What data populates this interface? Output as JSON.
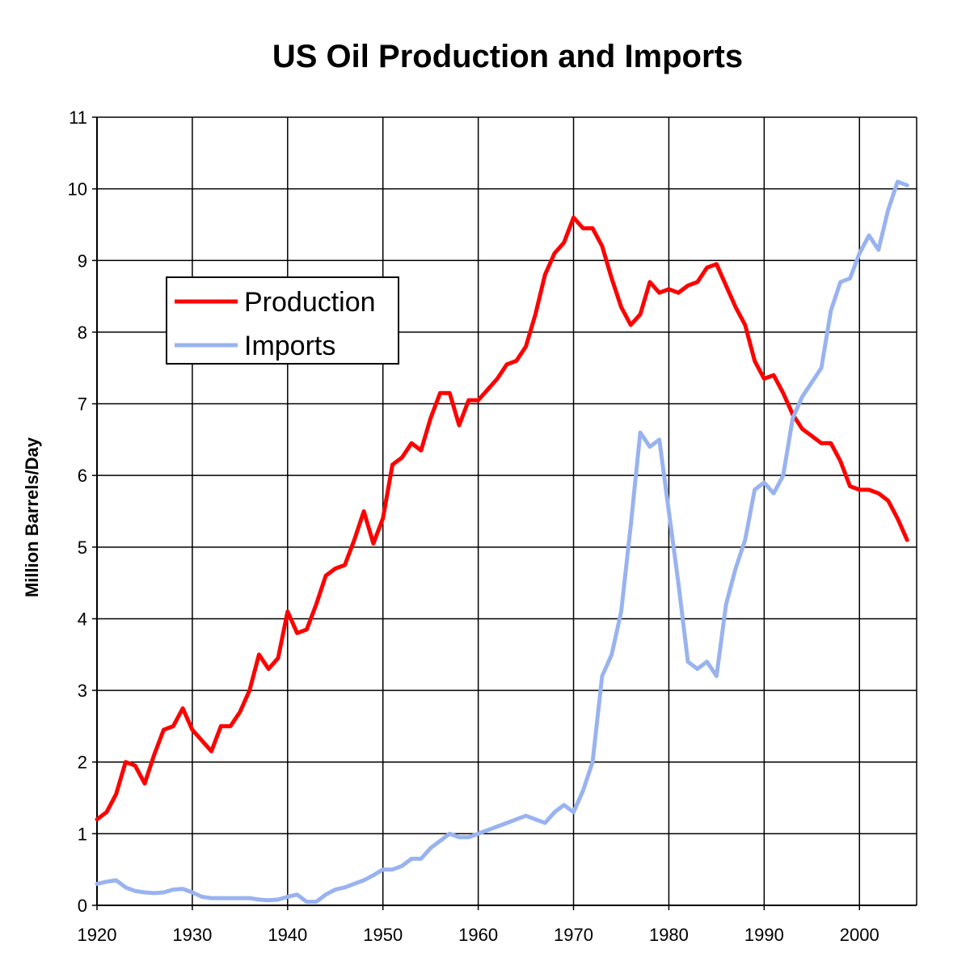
{
  "chart_data": {
    "type": "line",
    "title": "US Oil Production and Imports",
    "xlabel": "",
    "ylabel": "Million Barrels/Day",
    "xlim": [
      1920,
      2006
    ],
    "ylim": [
      0,
      11
    ],
    "x_ticks": [
      "1920",
      "1930",
      "1940",
      "1950",
      "1960",
      "1970",
      "1980",
      "1990",
      "2000"
    ],
    "y_ticks": [
      "0",
      "1",
      "2",
      "3",
      "4",
      "5",
      "6",
      "7",
      "8",
      "9",
      "10",
      "11"
    ],
    "grid": true,
    "legend_position": "upper-left",
    "colors": {
      "production": "#ff0000",
      "imports": "#99b3f0",
      "grid": "#000000"
    },
    "series": [
      {
        "name": "Production",
        "x": [
          1920,
          1921,
          1922,
          1923,
          1924,
          1925,
          1926,
          1927,
          1928,
          1929,
          1930,
          1931,
          1932,
          1933,
          1934,
          1935,
          1936,
          1937,
          1938,
          1939,
          1940,
          1941,
          1942,
          1943,
          1944,
          1945,
          1946,
          1947,
          1948,
          1949,
          1950,
          1951,
          1952,
          1953,
          1954,
          1955,
          1956,
          1957,
          1958,
          1959,
          1960,
          1961,
          1962,
          1963,
          1964,
          1965,
          1966,
          1967,
          1968,
          1969,
          1970,
          1971,
          1972,
          1973,
          1974,
          1975,
          1976,
          1977,
          1978,
          1979,
          1980,
          1981,
          1982,
          1983,
          1984,
          1985,
          1986,
          1987,
          1988,
          1989,
          1990,
          1991,
          1992,
          1993,
          1994,
          1995,
          1996,
          1997,
          1998,
          1999,
          2000,
          2001,
          2002,
          2003,
          2004,
          2005
        ],
        "values": [
          1.2,
          1.3,
          1.55,
          2.0,
          1.95,
          1.7,
          2.1,
          2.45,
          2.5,
          2.75,
          2.45,
          2.3,
          2.15,
          2.5,
          2.5,
          2.7,
          3.0,
          3.5,
          3.3,
          3.45,
          4.1,
          3.8,
          3.85,
          4.2,
          4.6,
          4.7,
          4.75,
          5.1,
          5.5,
          5.05,
          5.4,
          6.15,
          6.25,
          6.45,
          6.35,
          6.8,
          7.15,
          7.15,
          6.7,
          7.05,
          7.05,
          7.2,
          7.35,
          7.55,
          7.6,
          7.8,
          8.25,
          8.8,
          9.1,
          9.25,
          9.6,
          9.45,
          9.45,
          9.2,
          8.75,
          8.35,
          8.1,
          8.25,
          8.7,
          8.55,
          8.6,
          8.55,
          8.65,
          8.7,
          8.9,
          8.95,
          8.65,
          8.35,
          8.1,
          7.6,
          7.35,
          7.4,
          7.15,
          6.85,
          6.65,
          6.55,
          6.45,
          6.45,
          6.2,
          5.85,
          5.8,
          5.8,
          5.75,
          5.65,
          5.4,
          5.1
        ]
      },
      {
        "name": "Imports",
        "x": [
          1920,
          1921,
          1922,
          1923,
          1924,
          1925,
          1926,
          1927,
          1928,
          1929,
          1930,
          1931,
          1932,
          1933,
          1934,
          1935,
          1936,
          1937,
          1938,
          1939,
          1940,
          1941,
          1942,
          1943,
          1944,
          1945,
          1946,
          1947,
          1948,
          1949,
          1950,
          1951,
          1952,
          1953,
          1954,
          1955,
          1956,
          1957,
          1958,
          1959,
          1960,
          1961,
          1962,
          1963,
          1964,
          1965,
          1966,
          1967,
          1968,
          1969,
          1970,
          1971,
          1972,
          1973,
          1974,
          1975,
          1976,
          1977,
          1978,
          1979,
          1980,
          1981,
          1982,
          1983,
          1984,
          1985,
          1986,
          1987,
          1988,
          1989,
          1990,
          1991,
          1992,
          1993,
          1994,
          1995,
          1996,
          1997,
          1998,
          1999,
          2000,
          2001,
          2002,
          2003,
          2004,
          2005
        ],
        "values": [
          0.3,
          0.33,
          0.35,
          0.25,
          0.2,
          0.18,
          0.17,
          0.18,
          0.22,
          0.23,
          0.18,
          0.12,
          0.1,
          0.1,
          0.1,
          0.1,
          0.1,
          0.08,
          0.07,
          0.08,
          0.12,
          0.15,
          0.05,
          0.05,
          0.15,
          0.22,
          0.25,
          0.3,
          0.35,
          0.42,
          0.5,
          0.5,
          0.55,
          0.65,
          0.65,
          0.8,
          0.9,
          1.0,
          0.95,
          0.95,
          1.0,
          1.05,
          1.1,
          1.15,
          1.2,
          1.25,
          1.2,
          1.15,
          1.3,
          1.4,
          1.3,
          1.6,
          2.0,
          3.2,
          3.5,
          4.1,
          5.3,
          6.6,
          6.4,
          6.5,
          5.5,
          4.5,
          3.4,
          3.3,
          3.4,
          3.2,
          4.2,
          4.7,
          5.1,
          5.8,
          5.9,
          5.75,
          6.0,
          6.8,
          7.1,
          7.3,
          7.5,
          8.3,
          8.7,
          8.75,
          9.1,
          9.35,
          9.15,
          9.7,
          10.1,
          10.05
        ]
      }
    ]
  }
}
